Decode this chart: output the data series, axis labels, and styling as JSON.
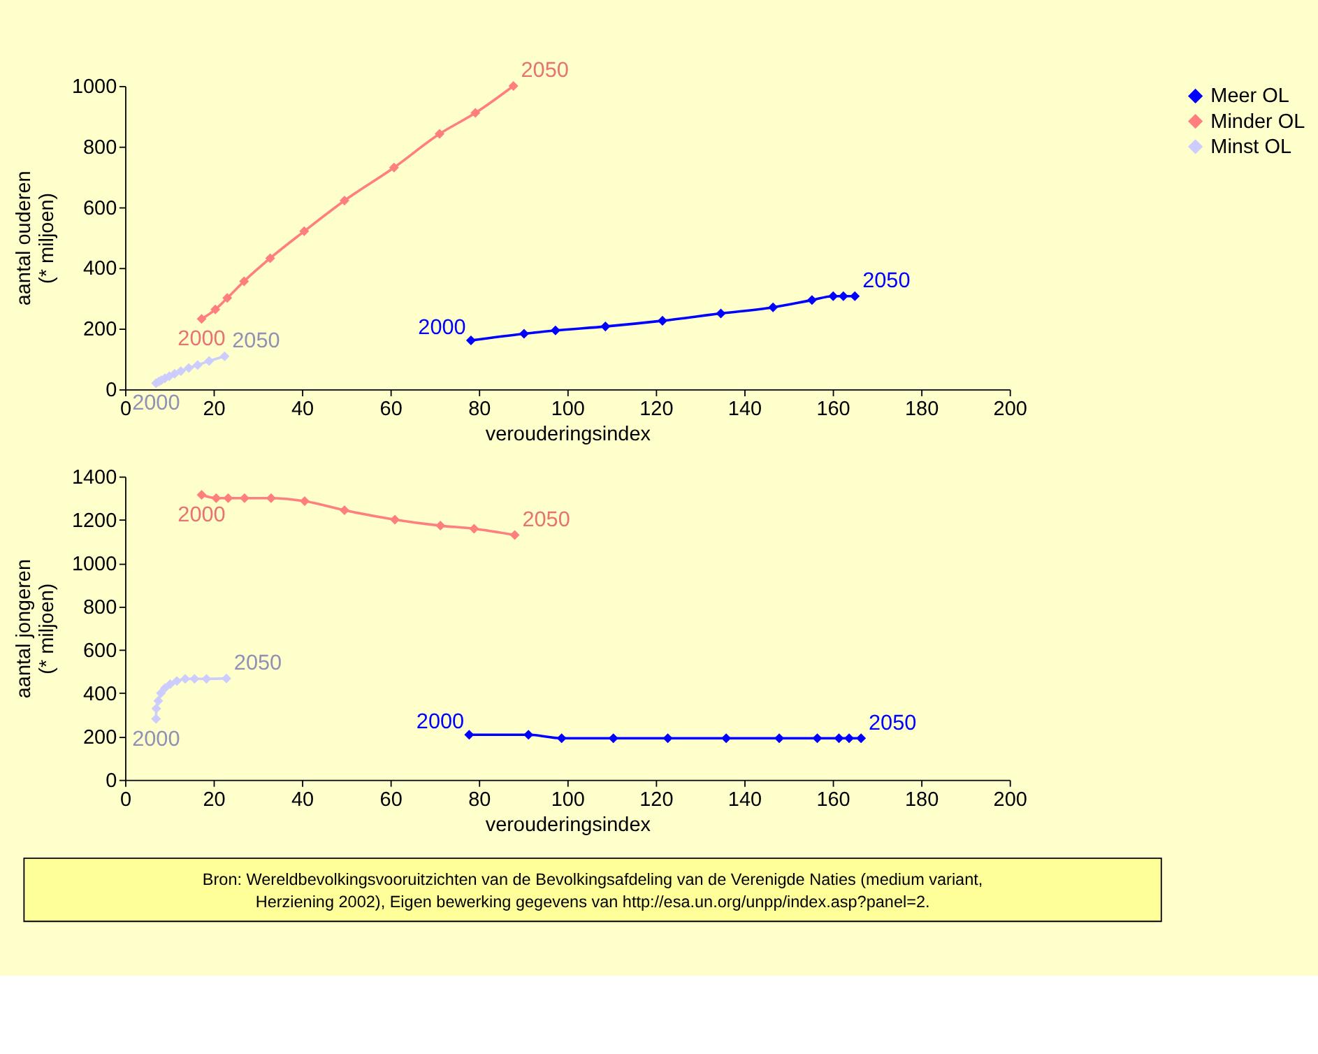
{
  "chart_data": [
    {
      "type": "line",
      "xlabel": "verouderingsindex",
      "ylabel": "aantal ouderen\n(* miljoen)",
      "xlim": [
        0,
        200
      ],
      "xticks": [
        0,
        20,
        40,
        60,
        80,
        100,
        120,
        140,
        160,
        180,
        200
      ],
      "ylim": [
        0,
        1000
      ],
      "yticks": [
        0,
        200,
        400,
        600,
        800,
        1000
      ],
      "marker": "diamond",
      "legend": "top right",
      "series": [
        {
          "name": "Meer OL",
          "color": "#0000ff",
          "x": [
            78.2,
            90.2,
            97.3,
            108.6,
            121.5,
            134.7,
            146.5,
            155.3,
            160.1,
            162.4,
            165.0
          ],
          "values": [
            161,
            183,
            194,
            207,
            226,
            250,
            270,
            294,
            307,
            307,
            307
          ]
        },
        {
          "name": "Minder OL",
          "color": "#ff7f7f",
          "x": [
            17.3,
            20.4,
            23.1,
            26.9,
            32.8,
            40.5,
            49.6,
            60.8,
            71.1,
            79.2,
            87.8
          ],
          "values": [
            232,
            263,
            301,
            356,
            432,
            521,
            622,
            731,
            842,
            911,
            1000
          ]
        },
        {
          "name": "Minst OL",
          "color": "#ccccff",
          "x": [
            7.0,
            7.6,
            8.2,
            9.0,
            10.0,
            11.2,
            12.6,
            14.4,
            16.4,
            19.0,
            22.5
          ],
          "values": [
            20,
            25,
            30,
            36,
            43,
            51,
            60,
            70,
            80,
            93,
            109
          ]
        }
      ],
      "annotations": [
        {
          "text": "2000",
          "x": 78.2,
          "y": 161
        },
        {
          "text": "2050",
          "x": 165.0,
          "y": 307
        },
        {
          "text": "2000",
          "x": 17.3,
          "y": 232
        },
        {
          "text": "2050",
          "x": 87.8,
          "y": 1000
        },
        {
          "text": "2000",
          "x": 7.0,
          "y": 20
        },
        {
          "text": "2050",
          "x": 22.5,
          "y": 109
        }
      ]
    },
    {
      "type": "line",
      "xlabel": "verouderingsindex",
      "ylabel": "aantal jongeren\n(* miljoen)",
      "xlim": [
        0,
        200
      ],
      "xticks": [
        0,
        20,
        40,
        60,
        80,
        100,
        120,
        140,
        160,
        180,
        200
      ],
      "ylim": [
        0,
        1400
      ],
      "yticks": [
        0,
        200,
        400,
        600,
        800,
        1000,
        1200,
        1400
      ],
      "marker": "diamond",
      "legend": "top right",
      "series": [
        {
          "name": "Meer OL",
          "color": "#0000ff",
          "x": [
            77.8,
            91.2,
            98.7,
            110.4,
            122.7,
            135.9,
            147.9,
            156.5,
            161.4,
            163.7,
            166.4
          ],
          "values": [
            208,
            208,
            192,
            192,
            192,
            192,
            192,
            192,
            192,
            192,
            192
          ]
        },
        {
          "name": "Minder OL",
          "color": "#ff7f7f",
          "x": [
            17.3,
            20.6,
            23.3,
            27.0,
            33.0,
            40.6,
            49.6,
            61.0,
            71.3,
            78.9,
            88.1
          ],
          "values": [
            1315,
            1300,
            1300,
            1300,
            1300,
            1286,
            1244,
            1201,
            1173,
            1159,
            1130
          ]
        },
        {
          "name": "Minst OL",
          "color": "#ccccff",
          "x": [
            7.0,
            7.05,
            7.5,
            8.1,
            9.0,
            10.2,
            11.7,
            13.6,
            15.7,
            18.4,
            22.9
          ],
          "values": [
            281,
            329,
            364,
            400,
            423,
            442,
            456,
            466,
            466,
            466,
            468
          ]
        }
      ],
      "annotations": [
        {
          "text": "2000",
          "x": 77.8,
          "y": 208
        },
        {
          "text": "2050",
          "x": 166.4,
          "y": 192
        },
        {
          "text": "2000",
          "x": 17.3,
          "y": 1315
        },
        {
          "text": "2050",
          "x": 88.1,
          "y": 1130
        },
        {
          "text": "2000",
          "x": 7.0,
          "y": 281
        },
        {
          "text": "2050",
          "x": 22.9,
          "y": 468
        },
        "Bron: Wereldbevolkingsvooruitzichten van de Bevolkingsafdeling van de Verenigde Naties (medium variant,\nHerziening 2002), Eigen bewerking gegevens van http://esa.un.org/unpp/index.asp?panel=2."
      ]
    }
  ]
}
